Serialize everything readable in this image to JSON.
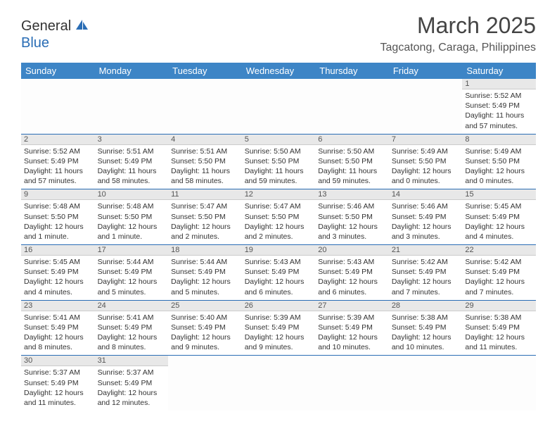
{
  "logo": {
    "text_dark": "General",
    "text_blue": "Blue"
  },
  "header": {
    "month_title": "March 2025",
    "location": "Tagcatong, Caraga, Philippines"
  },
  "colors": {
    "header_bg": "#3d85c6",
    "header_text": "#ffffff",
    "day_num_bg": "#e8e8e8",
    "row_border": "#2a6db5",
    "logo_blue": "#2a6db5"
  },
  "weekdays": [
    "Sunday",
    "Monday",
    "Tuesday",
    "Wednesday",
    "Thursday",
    "Friday",
    "Saturday"
  ],
  "weeks": [
    [
      null,
      null,
      null,
      null,
      null,
      null,
      {
        "num": "1",
        "sunrise": "Sunrise: 5:52 AM",
        "sunset": "Sunset: 5:49 PM",
        "daylight": "Daylight: 11 hours and 57 minutes."
      }
    ],
    [
      {
        "num": "2",
        "sunrise": "Sunrise: 5:52 AM",
        "sunset": "Sunset: 5:49 PM",
        "daylight": "Daylight: 11 hours and 57 minutes."
      },
      {
        "num": "3",
        "sunrise": "Sunrise: 5:51 AM",
        "sunset": "Sunset: 5:49 PM",
        "daylight": "Daylight: 11 hours and 58 minutes."
      },
      {
        "num": "4",
        "sunrise": "Sunrise: 5:51 AM",
        "sunset": "Sunset: 5:50 PM",
        "daylight": "Daylight: 11 hours and 58 minutes."
      },
      {
        "num": "5",
        "sunrise": "Sunrise: 5:50 AM",
        "sunset": "Sunset: 5:50 PM",
        "daylight": "Daylight: 11 hours and 59 minutes."
      },
      {
        "num": "6",
        "sunrise": "Sunrise: 5:50 AM",
        "sunset": "Sunset: 5:50 PM",
        "daylight": "Daylight: 11 hours and 59 minutes."
      },
      {
        "num": "7",
        "sunrise": "Sunrise: 5:49 AM",
        "sunset": "Sunset: 5:50 PM",
        "daylight": "Daylight: 12 hours and 0 minutes."
      },
      {
        "num": "8",
        "sunrise": "Sunrise: 5:49 AM",
        "sunset": "Sunset: 5:50 PM",
        "daylight": "Daylight: 12 hours and 0 minutes."
      }
    ],
    [
      {
        "num": "9",
        "sunrise": "Sunrise: 5:48 AM",
        "sunset": "Sunset: 5:50 PM",
        "daylight": "Daylight: 12 hours and 1 minute."
      },
      {
        "num": "10",
        "sunrise": "Sunrise: 5:48 AM",
        "sunset": "Sunset: 5:50 PM",
        "daylight": "Daylight: 12 hours and 1 minute."
      },
      {
        "num": "11",
        "sunrise": "Sunrise: 5:47 AM",
        "sunset": "Sunset: 5:50 PM",
        "daylight": "Daylight: 12 hours and 2 minutes."
      },
      {
        "num": "12",
        "sunrise": "Sunrise: 5:47 AM",
        "sunset": "Sunset: 5:50 PM",
        "daylight": "Daylight: 12 hours and 2 minutes."
      },
      {
        "num": "13",
        "sunrise": "Sunrise: 5:46 AM",
        "sunset": "Sunset: 5:50 PM",
        "daylight": "Daylight: 12 hours and 3 minutes."
      },
      {
        "num": "14",
        "sunrise": "Sunrise: 5:46 AM",
        "sunset": "Sunset: 5:49 PM",
        "daylight": "Daylight: 12 hours and 3 minutes."
      },
      {
        "num": "15",
        "sunrise": "Sunrise: 5:45 AM",
        "sunset": "Sunset: 5:49 PM",
        "daylight": "Daylight: 12 hours and 4 minutes."
      }
    ],
    [
      {
        "num": "16",
        "sunrise": "Sunrise: 5:45 AM",
        "sunset": "Sunset: 5:49 PM",
        "daylight": "Daylight: 12 hours and 4 minutes."
      },
      {
        "num": "17",
        "sunrise": "Sunrise: 5:44 AM",
        "sunset": "Sunset: 5:49 PM",
        "daylight": "Daylight: 12 hours and 5 minutes."
      },
      {
        "num": "18",
        "sunrise": "Sunrise: 5:44 AM",
        "sunset": "Sunset: 5:49 PM",
        "daylight": "Daylight: 12 hours and 5 minutes."
      },
      {
        "num": "19",
        "sunrise": "Sunrise: 5:43 AM",
        "sunset": "Sunset: 5:49 PM",
        "daylight": "Daylight: 12 hours and 6 minutes."
      },
      {
        "num": "20",
        "sunrise": "Sunrise: 5:43 AM",
        "sunset": "Sunset: 5:49 PM",
        "daylight": "Daylight: 12 hours and 6 minutes."
      },
      {
        "num": "21",
        "sunrise": "Sunrise: 5:42 AM",
        "sunset": "Sunset: 5:49 PM",
        "daylight": "Daylight: 12 hours and 7 minutes."
      },
      {
        "num": "22",
        "sunrise": "Sunrise: 5:42 AM",
        "sunset": "Sunset: 5:49 PM",
        "daylight": "Daylight: 12 hours and 7 minutes."
      }
    ],
    [
      {
        "num": "23",
        "sunrise": "Sunrise: 5:41 AM",
        "sunset": "Sunset: 5:49 PM",
        "daylight": "Daylight: 12 hours and 8 minutes."
      },
      {
        "num": "24",
        "sunrise": "Sunrise: 5:41 AM",
        "sunset": "Sunset: 5:49 PM",
        "daylight": "Daylight: 12 hours and 8 minutes."
      },
      {
        "num": "25",
        "sunrise": "Sunrise: 5:40 AM",
        "sunset": "Sunset: 5:49 PM",
        "daylight": "Daylight: 12 hours and 9 minutes."
      },
      {
        "num": "26",
        "sunrise": "Sunrise: 5:39 AM",
        "sunset": "Sunset: 5:49 PM",
        "daylight": "Daylight: 12 hours and 9 minutes."
      },
      {
        "num": "27",
        "sunrise": "Sunrise: 5:39 AM",
        "sunset": "Sunset: 5:49 PM",
        "daylight": "Daylight: 12 hours and 10 minutes."
      },
      {
        "num": "28",
        "sunrise": "Sunrise: 5:38 AM",
        "sunset": "Sunset: 5:49 PM",
        "daylight": "Daylight: 12 hours and 10 minutes."
      },
      {
        "num": "29",
        "sunrise": "Sunrise: 5:38 AM",
        "sunset": "Sunset: 5:49 PM",
        "daylight": "Daylight: 12 hours and 11 minutes."
      }
    ],
    [
      {
        "num": "30",
        "sunrise": "Sunrise: 5:37 AM",
        "sunset": "Sunset: 5:49 PM",
        "daylight": "Daylight: 12 hours and 11 minutes."
      },
      {
        "num": "31",
        "sunrise": "Sunrise: 5:37 AM",
        "sunset": "Sunset: 5:49 PM",
        "daylight": "Daylight: 12 hours and 12 minutes."
      },
      null,
      null,
      null,
      null,
      null
    ]
  ]
}
